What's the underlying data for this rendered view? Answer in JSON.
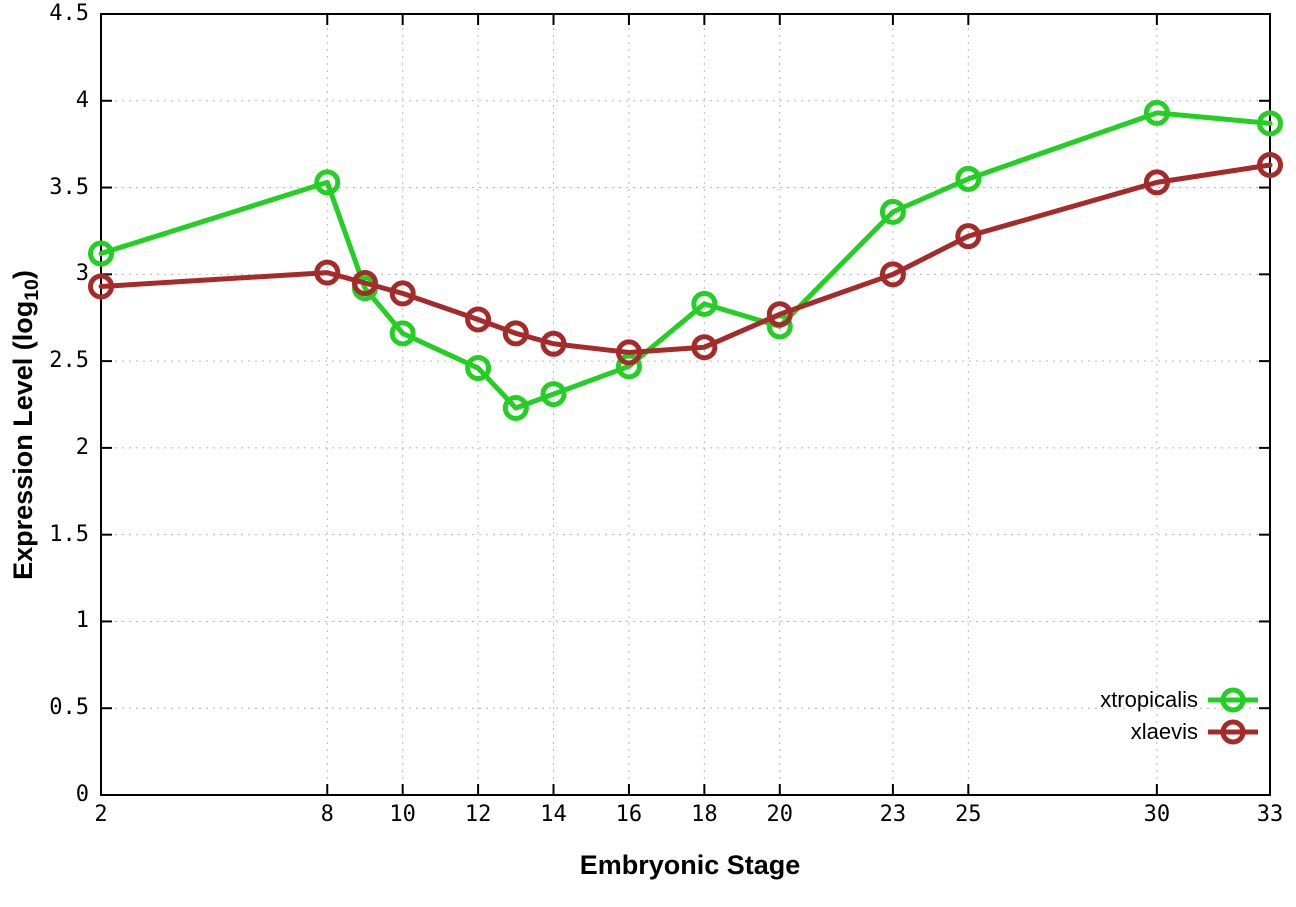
{
  "chart_data": {
    "type": "line",
    "title": "",
    "xlabel": "Embryonic Stage",
    "ylabel": {
      "prefix": "Expression Level (log",
      "sub": "10",
      "suffix": ")"
    },
    "x": [
      2,
      8,
      9,
      10,
      12,
      13,
      14,
      16,
      18,
      20,
      23,
      25,
      30,
      33
    ],
    "series": [
      {
        "name": "xtropicalis",
        "color": "#22cf22",
        "values": [
          3.12,
          3.53,
          2.92,
          2.66,
          2.46,
          2.23,
          2.31,
          2.47,
          2.83,
          2.7,
          3.36,
          3.55,
          3.93,
          3.87
        ]
      },
      {
        "name": "xlaevis",
        "color": "#a52a2a",
        "values": [
          2.93,
          3.01,
          2.95,
          2.89,
          2.74,
          2.66,
          2.6,
          2.55,
          2.58,
          2.77,
          3.0,
          3.22,
          3.53,
          3.63
        ]
      }
    ],
    "xticks": [
      2,
      8,
      10,
      12,
      14,
      16,
      18,
      20,
      23,
      25,
      30,
      33
    ],
    "xtick_labels": [
      "2",
      "8",
      "10",
      "12",
      "14",
      "16",
      "18",
      "20",
      "23",
      "25",
      "30",
      "33"
    ],
    "yticks": [
      0,
      0.5,
      1,
      1.5,
      2,
      2.5,
      3,
      3.5,
      4,
      4.5
    ],
    "ytick_labels": [
      "0",
      "0.5",
      "1",
      "1.5",
      "2",
      "2.5",
      "3",
      "3.5",
      "4",
      "4.5"
    ],
    "xlim": [
      2,
      33
    ],
    "ylim": [
      0,
      4.5
    ],
    "grid": true,
    "legend_position": "bottom-right",
    "legend_entries": [
      "xtropicalis",
      "xlaevis"
    ]
  },
  "colors": {
    "background": "#ffffff",
    "axis": "#000000",
    "grid": "#b9b9b9",
    "xtropicalis": "#22cf22",
    "xlaevis": "#a52a2a"
  }
}
